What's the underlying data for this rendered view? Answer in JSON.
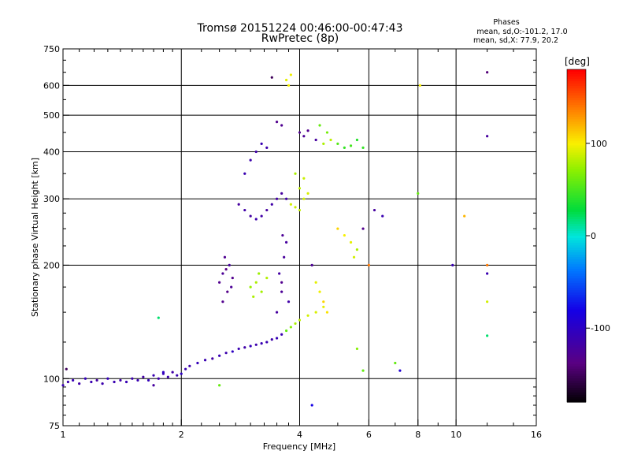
{
  "header": {
    "title_line1": "Tromsø 20151224 00:46:00-00:47:43",
    "title_line2": "RwPretec (8p)"
  },
  "phase_stats": {
    "heading": "Phases",
    "line_o": "mean, sd,O:-101.2, 17.0",
    "line_x": "mean, sd,X:  77.9, 20.2"
  },
  "colorbar": {
    "unit_label": "[deg]",
    "tick_labels": [
      "100",
      "0",
      "-100"
    ],
    "tick_values": [
      100,
      0,
      -100
    ],
    "range": [
      -180,
      180
    ]
  },
  "chart_data": {
    "type": "scatter",
    "title": "Tromsø 20151224 00:46:00-00:47:43",
    "subtitle": "RwPretec (8p)",
    "xlabel": "Frequency [MHz]",
    "ylabel": "Stationary phase Virtual Height [km]",
    "x_scale": "log",
    "y_scale": "log",
    "xlim": [
      1,
      16
    ],
    "ylim": [
      75,
      750
    ],
    "x_ticks": [
      1,
      2,
      4,
      6,
      8,
      10,
      16
    ],
    "x_tick_labels": [
      "1",
      "2",
      "4",
      "6",
      "8",
      "10",
      "16"
    ],
    "x_grid": [
      2,
      4,
      6,
      8,
      10
    ],
    "y_ticks": [
      75,
      100,
      200,
      300,
      400,
      500,
      600,
      750
    ],
    "y_tick_labels": [
      "75",
      "100",
      "200",
      "300",
      "400",
      "500",
      "600",
      "750"
    ],
    "y_grid": [
      100,
      200,
      300,
      400,
      500,
      600
    ],
    "color_variable": "phase [deg]",
    "points": [
      [
        1.0,
        96,
        -110
      ],
      [
        1.03,
        98,
        -112
      ],
      [
        1.06,
        99,
        -108
      ],
      [
        1.1,
        97,
        -115
      ],
      [
        1.14,
        100,
        -105
      ],
      [
        1.18,
        98,
        -110
      ],
      [
        1.22,
        99,
        -118
      ],
      [
        1.26,
        97,
        -112
      ],
      [
        1.3,
        100,
        -106
      ],
      [
        1.35,
        98,
        -110
      ],
      [
        1.4,
        99,
        -115
      ],
      [
        1.45,
        98,
        -108
      ],
      [
        1.5,
        100,
        -112
      ],
      [
        1.55,
        99,
        -110
      ],
      [
        1.6,
        101,
        -118
      ],
      [
        1.65,
        99,
        -105
      ],
      [
        1.7,
        102,
        -110
      ],
      [
        1.75,
        100,
        -114
      ],
      [
        1.8,
        103,
        -108
      ],
      [
        1.85,
        101,
        -112
      ],
      [
        1.9,
        104,
        -116
      ],
      [
        1.95,
        102,
        -110
      ],
      [
        2.0,
        103,
        -100
      ],
      [
        2.05,
        106,
        -110
      ],
      [
        2.1,
        108,
        -112
      ],
      [
        2.2,
        110,
        -105
      ],
      [
        2.3,
        112,
        -110
      ],
      [
        2.4,
        113,
        -118
      ],
      [
        2.5,
        115,
        -108
      ],
      [
        2.6,
        117,
        -112
      ],
      [
        2.7,
        118,
        -100
      ],
      [
        2.8,
        120,
        -110
      ],
      [
        2.9,
        121,
        -115
      ],
      [
        3.0,
        122,
        -105
      ],
      [
        3.1,
        123,
        -112
      ],
      [
        3.2,
        124,
        -108
      ],
      [
        3.3,
        125,
        -110
      ],
      [
        3.4,
        127,
        -114
      ],
      [
        3.5,
        128,
        -106
      ],
      [
        3.6,
        131,
        -110
      ],
      [
        3.7,
        134,
        60
      ],
      [
        3.8,
        137,
        70
      ],
      [
        3.9,
        140,
        80
      ],
      [
        4.0,
        143,
        85
      ],
      [
        4.2,
        147,
        90
      ],
      [
        4.4,
        150,
        92
      ],
      [
        4.6,
        155,
        95
      ],
      [
        2.5,
        96,
        60
      ],
      [
        1.8,
        104,
        -100
      ],
      [
        1.7,
        96,
        -120
      ],
      [
        1.02,
        106,
        -150
      ],
      [
        1.75,
        145,
        20
      ],
      [
        2.5,
        180,
        -130
      ],
      [
        2.55,
        190,
        -125
      ],
      [
        2.6,
        195,
        -135
      ],
      [
        2.65,
        200,
        -120
      ],
      [
        2.7,
        185,
        -130
      ],
      [
        2.58,
        210,
        -128
      ],
      [
        2.62,
        170,
        -132
      ],
      [
        2.68,
        175,
        -125
      ],
      [
        2.55,
        160,
        -130
      ],
      [
        3.0,
        175,
        75
      ],
      [
        3.1,
        180,
        80
      ],
      [
        3.2,
        170,
        78
      ],
      [
        3.3,
        185,
        82
      ],
      [
        3.15,
        190,
        76
      ],
      [
        3.05,
        165,
        80
      ],
      [
        3.5,
        150,
        -120
      ],
      [
        3.6,
        170,
        -125
      ],
      [
        3.55,
        190,
        -118
      ],
      [
        3.65,
        210,
        -122
      ],
      [
        3.7,
        230,
        -120
      ],
      [
        3.6,
        180,
        -130
      ],
      [
        3.75,
        160,
        -115
      ],
      [
        3.62,
        240,
        -125
      ],
      [
        2.8,
        290,
        -120
      ],
      [
        2.9,
        280,
        -115
      ],
      [
        3.0,
        270,
        -118
      ],
      [
        3.1,
        265,
        -112
      ],
      [
        3.2,
        270,
        -116
      ],
      [
        3.3,
        280,
        -120
      ],
      [
        3.4,
        290,
        -115
      ],
      [
        3.5,
        300,
        -118
      ],
      [
        3.6,
        310,
        -120
      ],
      [
        3.7,
        300,
        -116
      ],
      [
        3.8,
        290,
        90
      ],
      [
        3.9,
        285,
        88
      ],
      [
        4.0,
        280,
        86
      ],
      [
        4.1,
        300,
        90
      ],
      [
        4.2,
        310,
        92
      ],
      [
        2.9,
        350,
        -110
      ],
      [
        3.0,
        380,
        -112
      ],
      [
        3.1,
        400,
        -115
      ],
      [
        3.2,
        420,
        -110
      ],
      [
        3.3,
        410,
        -113
      ],
      [
        3.5,
        480,
        -130
      ],
      [
        3.6,
        470,
        -128
      ],
      [
        3.7,
        620,
        95
      ],
      [
        3.75,
        600,
        100
      ],
      [
        3.8,
        640,
        98
      ],
      [
        3.4,
        630,
        -150
      ],
      [
        4.0,
        450,
        -128
      ],
      [
        4.1,
        440,
        -125
      ],
      [
        4.2,
        455,
        -130
      ],
      [
        4.4,
        430,
        -120
      ],
      [
        4.6,
        420,
        80
      ],
      [
        4.8,
        430,
        85
      ],
      [
        5.0,
        420,
        55
      ],
      [
        5.2,
        410,
        45
      ],
      [
        5.4,
        415,
        50
      ],
      [
        5.6,
        430,
        40
      ],
      [
        5.8,
        410,
        45
      ],
      [
        4.5,
        470,
        60
      ],
      [
        4.7,
        450,
        65
      ],
      [
        3.9,
        350,
        80
      ],
      [
        4.0,
        320,
        85
      ],
      [
        4.1,
        340,
        88
      ],
      [
        4.3,
        200,
        -125
      ],
      [
        4.4,
        180,
        95
      ],
      [
        4.5,
        170,
        98
      ],
      [
        4.6,
        160,
        110
      ],
      [
        4.7,
        150,
        105
      ],
      [
        5.0,
        250,
        110
      ],
      [
        5.2,
        240,
        100
      ],
      [
        5.4,
        230,
        95
      ],
      [
        5.5,
        210,
        90
      ],
      [
        5.6,
        220,
        80
      ],
      [
        6.0,
        200,
        140
      ],
      [
        5.8,
        250,
        -130
      ],
      [
        7.0,
        110,
        60
      ],
      [
        7.2,
        105,
        -90
      ],
      [
        6.5,
        270,
        -110
      ],
      [
        6.2,
        280,
        -120
      ],
      [
        8.0,
        310,
        60
      ],
      [
        8.1,
        600,
        100
      ],
      [
        9.8,
        200,
        -110
      ],
      [
        12.0,
        650,
        -140
      ],
      [
        12.0,
        440,
        -120
      ],
      [
        12.0,
        200,
        140
      ],
      [
        12.0,
        190,
        -110
      ],
      [
        12.0,
        130,
        20
      ],
      [
        12.0,
        160,
        90
      ],
      [
        10.5,
        270,
        120
      ],
      [
        4.3,
        85,
        -80
      ],
      [
        5.8,
        105,
        60
      ],
      [
        5.6,
        120,
        70
      ]
    ]
  }
}
